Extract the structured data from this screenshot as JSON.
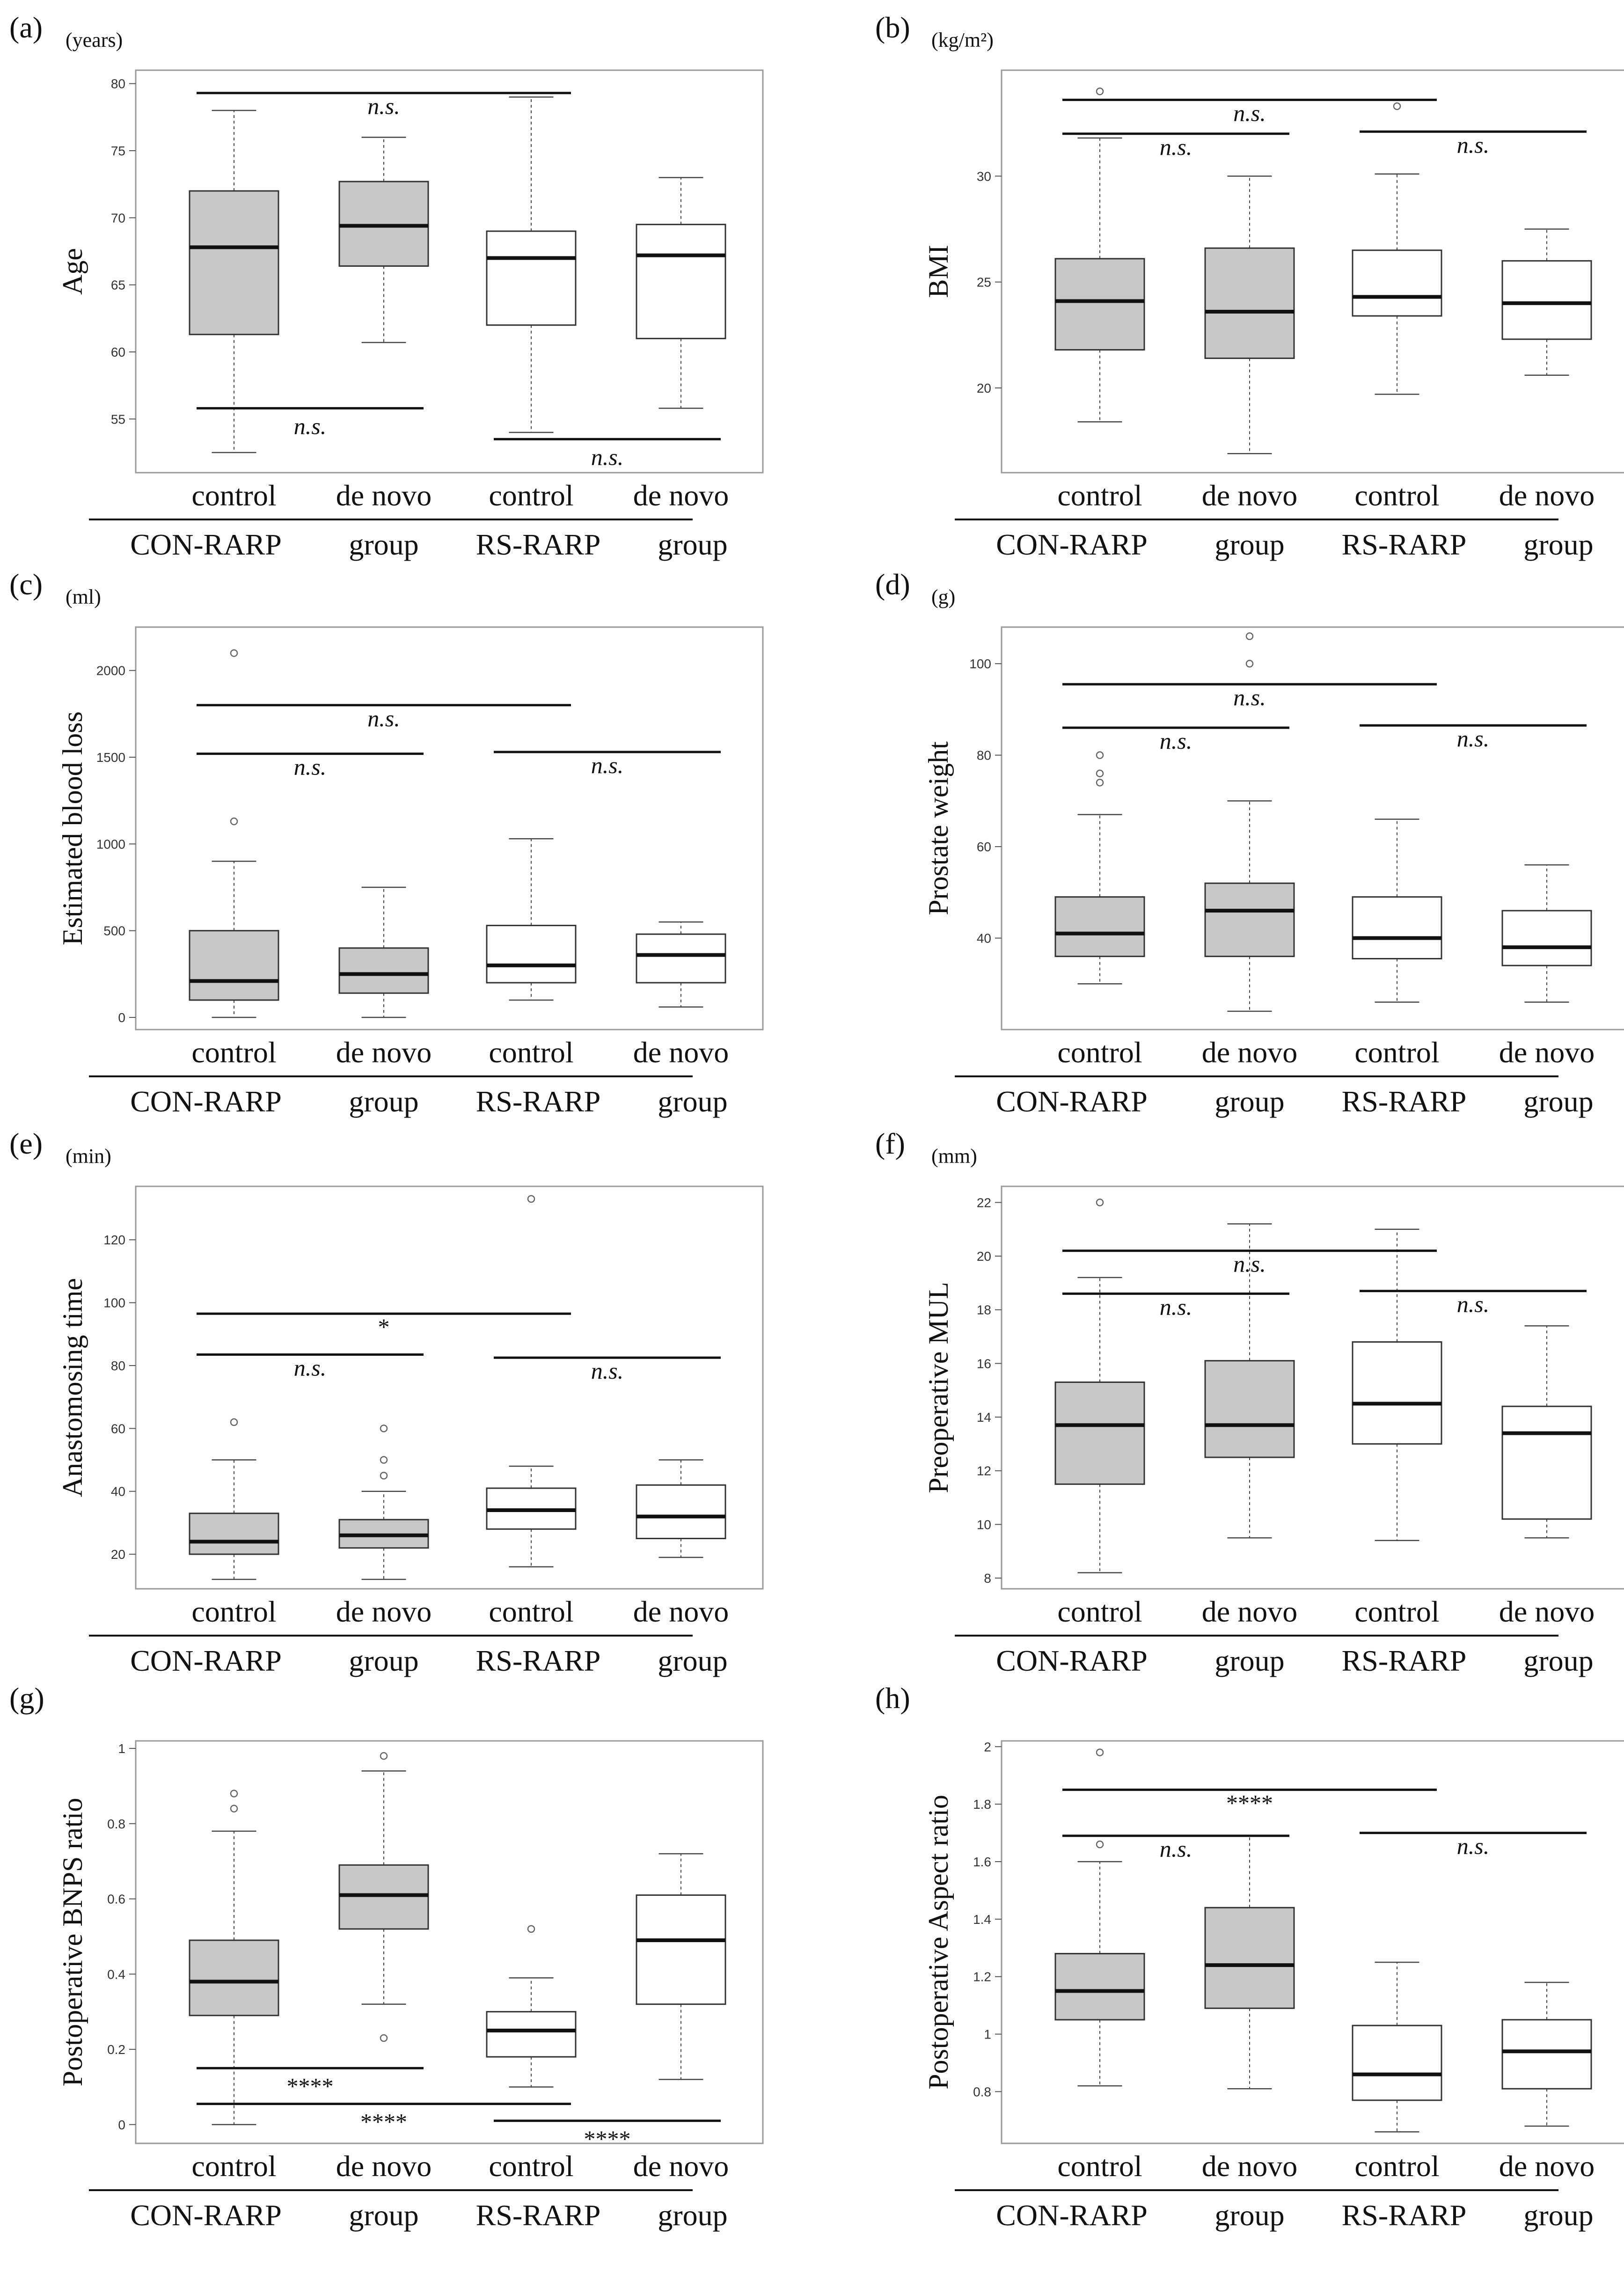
{
  "figure": {
    "group_labels": [
      "CON-RARP",
      "group",
      "RS-RARP",
      "group"
    ],
    "colors": {
      "box_gray": "#c8c8c8",
      "box_white": "#ffffff",
      "stroke": "#222222",
      "frame": "#9a9a9a"
    }
  },
  "chart_data": [
    {
      "panel": "(a)",
      "type": "boxplot",
      "unit": "(years)",
      "ylabel": "Age",
      "ylim": [
        51,
        81
      ],
      "yticks": [
        55,
        60,
        65,
        70,
        75,
        80
      ],
      "categories": [
        "control",
        "de novo",
        "control",
        "de novo"
      ],
      "boxes": [
        {
          "min": 52.5,
          "q1": 61.3,
          "median": 67.8,
          "q3": 72.0,
          "max": 78.0,
          "outliers": [],
          "fill": "gray"
        },
        {
          "min": 60.7,
          "q1": 66.4,
          "median": 69.4,
          "q3": 72.7,
          "max": 76.0,
          "outliers": [],
          "fill": "gray"
        },
        {
          "min": 54.0,
          "q1": 62.0,
          "median": 67.0,
          "q3": 69.0,
          "max": 79.0,
          "outliers": [],
          "fill": "white"
        },
        {
          "min": 55.8,
          "q1": 61.0,
          "median": 67.2,
          "q3": 69.5,
          "max": 73.0,
          "outliers": [],
          "fill": "white"
        }
      ],
      "significance": [
        {
          "from": 0,
          "to": 2,
          "y": 79.3,
          "label": "n.s."
        },
        {
          "from": 0,
          "to": 1,
          "y": 55.8,
          "label": "n.s.",
          "text_below": true
        },
        {
          "from": 2,
          "to": 3,
          "y": 53.5,
          "label": "n.s.",
          "text_below": true
        }
      ]
    },
    {
      "panel": "(b)",
      "type": "boxplot",
      "unit": "(kg/m²)",
      "ylabel": "BMI",
      "ylim": [
        16,
        35
      ],
      "yticks": [
        20,
        25,
        30
      ],
      "categories": [
        "control",
        "de novo",
        "control",
        "de novo"
      ],
      "boxes": [
        {
          "min": 18.4,
          "q1": 21.8,
          "median": 24.1,
          "q3": 26.1,
          "max": 31.8,
          "outliers": [
            34.0
          ],
          "fill": "gray"
        },
        {
          "min": 16.9,
          "q1": 21.4,
          "median": 23.6,
          "q3": 26.6,
          "max": 30.0,
          "outliers": [],
          "fill": "gray"
        },
        {
          "min": 19.7,
          "q1": 23.4,
          "median": 24.3,
          "q3": 26.5,
          "max": 30.1,
          "outliers": [
            33.3
          ],
          "fill": "white"
        },
        {
          "min": 20.6,
          "q1": 22.3,
          "median": 24.0,
          "q3": 26.0,
          "max": 27.5,
          "outliers": [],
          "fill": "white"
        }
      ],
      "significance": [
        {
          "from": 0,
          "to": 2,
          "y": 33.6,
          "label": "n.s."
        },
        {
          "from": 0,
          "to": 1,
          "y": 32.0,
          "label": "n.s."
        },
        {
          "from": 2,
          "to": 3,
          "y": 32.1,
          "label": "n.s."
        }
      ]
    },
    {
      "panel": "(c)",
      "type": "boxplot",
      "unit": "(ml)",
      "ylabel": "Estimated blood loss",
      "ylim": [
        -70,
        2250
      ],
      "yticks": [
        0,
        500,
        1000,
        1500,
        2000
      ],
      "categories": [
        "control",
        "de novo",
        "control",
        "de novo"
      ],
      "boxes": [
        {
          "min": 0,
          "q1": 100,
          "median": 210,
          "q3": 500,
          "max": 900,
          "outliers": [
            2100,
            1130
          ],
          "fill": "gray"
        },
        {
          "min": 0,
          "q1": 140,
          "median": 250,
          "q3": 400,
          "max": 750,
          "outliers": [],
          "fill": "gray"
        },
        {
          "min": 100,
          "q1": 200,
          "median": 300,
          "q3": 530,
          "max": 1030,
          "outliers": [],
          "fill": "white"
        },
        {
          "min": 60,
          "q1": 200,
          "median": 360,
          "q3": 480,
          "max": 550,
          "outliers": [],
          "fill": "white"
        }
      ],
      "significance": [
        {
          "from": 0,
          "to": 2,
          "y": 1800,
          "label": "n.s."
        },
        {
          "from": 0,
          "to": 1,
          "y": 1520,
          "label": "n.s."
        },
        {
          "from": 2,
          "to": 3,
          "y": 1530,
          "label": "n.s."
        }
      ]
    },
    {
      "panel": "(d)",
      "type": "boxplot",
      "unit": "(g)",
      "ylabel": "Prostate weight",
      "ylim": [
        20,
        108
      ],
      "yticks": [
        40,
        60,
        80,
        100
      ],
      "categories": [
        "control",
        "de novo",
        "control",
        "de novo"
      ],
      "boxes": [
        {
          "min": 30,
          "q1": 36,
          "median": 41,
          "q3": 49,
          "max": 67,
          "outliers": [
            80,
            76,
            74
          ],
          "fill": "gray"
        },
        {
          "min": 24,
          "q1": 36,
          "median": 46,
          "q3": 52,
          "max": 70,
          "outliers": [
            106,
            100
          ],
          "fill": "gray"
        },
        {
          "min": 26,
          "q1": 35.5,
          "median": 40,
          "q3": 49,
          "max": 66,
          "outliers": [],
          "fill": "white"
        },
        {
          "min": 26,
          "q1": 34,
          "median": 38,
          "q3": 46,
          "max": 56,
          "outliers": [],
          "fill": "white"
        }
      ],
      "significance": [
        {
          "from": 0,
          "to": 2,
          "y": 95.5,
          "label": "n.s."
        },
        {
          "from": 0,
          "to": 1,
          "y": 86,
          "label": "n.s."
        },
        {
          "from": 2,
          "to": 3,
          "y": 86.5,
          "label": "n.s."
        }
      ]
    },
    {
      "panel": "(e)",
      "type": "boxplot",
      "unit": "(min)",
      "ylabel": "Anastomosing time",
      "ylim": [
        9,
        137
      ],
      "yticks": [
        20,
        40,
        60,
        80,
        100,
        120
      ],
      "categories": [
        "control",
        "de novo",
        "control",
        "de novo"
      ],
      "boxes": [
        {
          "min": 12,
          "q1": 20,
          "median": 24,
          "q3": 33,
          "max": 50,
          "outliers": [
            62
          ],
          "fill": "gray"
        },
        {
          "min": 12,
          "q1": 22,
          "median": 26,
          "q3": 31,
          "max": 40,
          "outliers": [
            60,
            50,
            45
          ],
          "fill": "gray"
        },
        {
          "min": 16,
          "q1": 28,
          "median": 34,
          "q3": 41,
          "max": 48,
          "outliers": [
            133
          ],
          "fill": "white"
        },
        {
          "min": 19,
          "q1": 25,
          "median": 32,
          "q3": 42,
          "max": 50,
          "outliers": [],
          "fill": "white"
        }
      ],
      "significance": [
        {
          "from": 0,
          "to": 2,
          "y": 96.5,
          "label": "*"
        },
        {
          "from": 0,
          "to": 1,
          "y": 83.5,
          "label": "n.s."
        },
        {
          "from": 2,
          "to": 3,
          "y": 82.5,
          "label": "n.s."
        }
      ]
    },
    {
      "panel": "(f)",
      "type": "boxplot",
      "unit": "(mm)",
      "ylabel": "Preoperative MUL",
      "ylim": [
        7.6,
        22.6
      ],
      "yticks": [
        8,
        10,
        12,
        14,
        16,
        18,
        20,
        22
      ],
      "categories": [
        "control",
        "de novo",
        "control",
        "de novo"
      ],
      "boxes": [
        {
          "min": 8.2,
          "q1": 11.5,
          "median": 13.7,
          "q3": 15.3,
          "max": 19.2,
          "outliers": [
            22.0
          ],
          "fill": "gray"
        },
        {
          "min": 9.5,
          "q1": 12.5,
          "median": 13.7,
          "q3": 16.1,
          "max": 21.2,
          "outliers": [],
          "fill": "gray"
        },
        {
          "min": 9.4,
          "q1": 13.0,
          "median": 14.5,
          "q3": 16.8,
          "max": 21.0,
          "outliers": [],
          "fill": "white"
        },
        {
          "min": 9.5,
          "q1": 10.2,
          "median": 13.4,
          "q3": 14.4,
          "max": 17.4,
          "outliers": [],
          "fill": "white"
        }
      ],
      "significance": [
        {
          "from": 0,
          "to": 2,
          "y": 20.2,
          "label": "n.s."
        },
        {
          "from": 0,
          "to": 1,
          "y": 18.6,
          "label": "n.s."
        },
        {
          "from": 2,
          "to": 3,
          "y": 18.7,
          "label": "n.s."
        }
      ]
    },
    {
      "panel": "(g)",
      "type": "boxplot",
      "unit": "",
      "ylabel": "Postoperative BNPS ratio",
      "ylim": [
        -0.05,
        1.02
      ],
      "yticks": [
        0.0,
        0.2,
        0.4,
        0.6,
        0.8,
        1.0
      ],
      "categories": [
        "control",
        "de novo",
        "control",
        "de novo"
      ],
      "boxes": [
        {
          "min": 0.0,
          "q1": 0.29,
          "median": 0.38,
          "q3": 0.49,
          "max": 0.78,
          "outliers": [
            0.88,
            0.84
          ],
          "fill": "gray"
        },
        {
          "min": 0.32,
          "q1": 0.52,
          "median": 0.61,
          "q3": 0.69,
          "max": 0.94,
          "outliers": [
            0.98,
            0.23
          ],
          "fill": "gray"
        },
        {
          "min": 0.1,
          "q1": 0.18,
          "median": 0.25,
          "q3": 0.3,
          "max": 0.39,
          "outliers": [
            0.52
          ],
          "fill": "white"
        },
        {
          "min": 0.12,
          "q1": 0.32,
          "median": 0.49,
          "q3": 0.61,
          "max": 0.72,
          "outliers": [],
          "fill": "white"
        }
      ],
      "significance": [
        {
          "from": 0,
          "to": 1,
          "y": 0.15,
          "label": "****",
          "text_below": true
        },
        {
          "from": 0,
          "to": 2,
          "y": 0.055,
          "label": "****",
          "text_below": true
        },
        {
          "from": 2,
          "to": 3,
          "y": 0.01,
          "label": "****",
          "text_below": true
        }
      ]
    },
    {
      "panel": "(h)",
      "type": "boxplot",
      "unit": "",
      "ylabel": "Postoperative Aspect ratio",
      "ylim": [
        0.62,
        2.02
      ],
      "yticks": [
        0.8,
        1.0,
        1.2,
        1.4,
        1.6,
        1.8,
        2.0
      ],
      "categories": [
        "control",
        "de novo",
        "control",
        "de novo"
      ],
      "boxes": [
        {
          "min": 0.82,
          "q1": 1.05,
          "median": 1.15,
          "q3": 1.28,
          "max": 1.6,
          "outliers": [
            1.98,
            1.66
          ],
          "fill": "gray"
        },
        {
          "min": 0.81,
          "q1": 1.09,
          "median": 1.24,
          "q3": 1.44,
          "max": 1.69,
          "outliers": [],
          "fill": "gray"
        },
        {
          "min": 0.66,
          "q1": 0.77,
          "median": 0.86,
          "q3": 1.03,
          "max": 1.25,
          "outliers": [],
          "fill": "white"
        },
        {
          "min": 0.68,
          "q1": 0.81,
          "median": 0.94,
          "q3": 1.05,
          "max": 1.18,
          "outliers": [],
          "fill": "white"
        }
      ],
      "significance": [
        {
          "from": 0,
          "to": 2,
          "y": 1.85,
          "label": "****"
        },
        {
          "from": 0,
          "to": 1,
          "y": 1.69,
          "label": "n.s."
        },
        {
          "from": 2,
          "to": 3,
          "y": 1.7,
          "label": "n.s."
        }
      ]
    }
  ]
}
